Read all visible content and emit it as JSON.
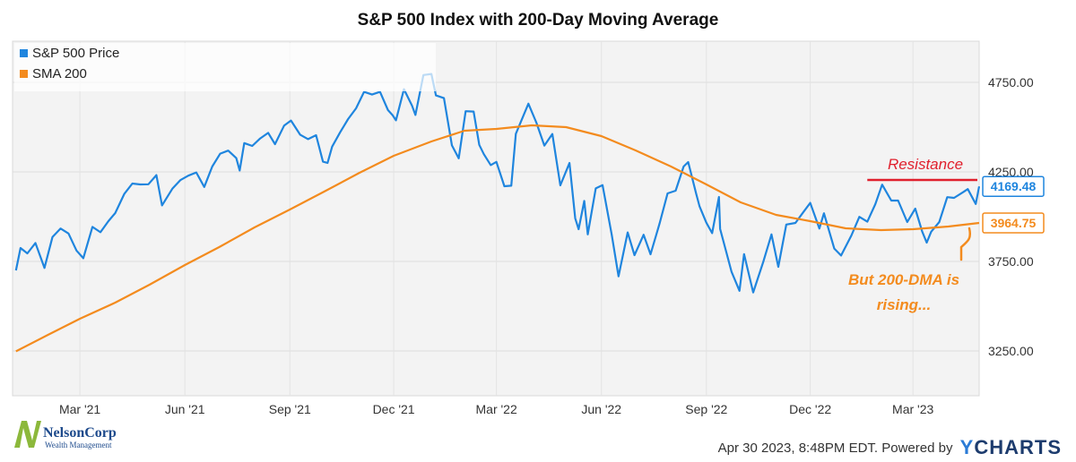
{
  "chart_data": {
    "type": "line",
    "title": "S&P 500 Index with 200-Day Moving Average",
    "x_axis_ticks": [
      "Mar '21",
      "Jun '21",
      "Sep '21",
      "Dec '21",
      "Mar '22",
      "Jun '22",
      "Sep '22",
      "Dec '22",
      "Mar '23"
    ],
    "y_axis_ticks": [
      "3250.00",
      "3750.00",
      "4250.00",
      "4750.00"
    ],
    "ylim": [
      3000,
      4980
    ],
    "xlim": [
      "2021-01-01",
      "2023-04-28"
    ],
    "legend_position": "top-left",
    "grid": true,
    "series": [
      {
        "name": "S&P 500 Price",
        "color": "#1f85de",
        "end_label": "4169.48",
        "points": [
          [
            "2021-01-04",
            3700
          ],
          [
            "2021-01-08",
            3825
          ],
          [
            "2021-01-14",
            3795
          ],
          [
            "2021-01-21",
            3853
          ],
          [
            "2021-01-29",
            3714
          ],
          [
            "2021-02-05",
            3886
          ],
          [
            "2021-02-12",
            3934
          ],
          [
            "2021-02-19",
            3906
          ],
          [
            "2021-02-26",
            3811
          ],
          [
            "2021-03-04",
            3768
          ],
          [
            "2021-03-12",
            3943
          ],
          [
            "2021-03-19",
            3913
          ],
          [
            "2021-03-26",
            3975
          ],
          [
            "2021-04-01",
            4020
          ],
          [
            "2021-04-09",
            4128
          ],
          [
            "2021-04-16",
            4185
          ],
          [
            "2021-04-23",
            4180
          ],
          [
            "2021-04-30",
            4181
          ],
          [
            "2021-05-07",
            4232
          ],
          [
            "2021-05-12",
            4063
          ],
          [
            "2021-05-21",
            4156
          ],
          [
            "2021-05-28",
            4204
          ],
          [
            "2021-06-04",
            4229
          ],
          [
            "2021-06-11",
            4247
          ],
          [
            "2021-06-18",
            4166
          ],
          [
            "2021-06-25",
            4280
          ],
          [
            "2021-07-02",
            4352
          ],
          [
            "2021-07-09",
            4369
          ],
          [
            "2021-07-16",
            4327
          ],
          [
            "2021-07-19",
            4258
          ],
          [
            "2021-07-23",
            4411
          ],
          [
            "2021-07-30",
            4395
          ],
          [
            "2021-08-06",
            4437
          ],
          [
            "2021-08-13",
            4468
          ],
          [
            "2021-08-19",
            4405
          ],
          [
            "2021-08-27",
            4509
          ],
          [
            "2021-09-02",
            4537
          ],
          [
            "2021-09-10",
            4458
          ],
          [
            "2021-09-17",
            4433
          ],
          [
            "2021-09-24",
            4455
          ],
          [
            "2021-09-30",
            4307
          ],
          [
            "2021-10-04",
            4300
          ],
          [
            "2021-10-08",
            4391
          ],
          [
            "2021-10-15",
            4471
          ],
          [
            "2021-10-22",
            4545
          ],
          [
            "2021-10-29",
            4605
          ],
          [
            "2021-11-05",
            4697
          ],
          [
            "2021-11-12",
            4682
          ],
          [
            "2021-11-19",
            4697
          ],
          [
            "2021-11-26",
            4595
          ],
          [
            "2021-11-30",
            4567
          ],
          [
            "2021-12-03",
            4538
          ],
          [
            "2021-12-10",
            4712
          ],
          [
            "2021-12-17",
            4620
          ],
          [
            "2021-12-20",
            4568
          ],
          [
            "2021-12-27",
            4791
          ],
          [
            "2022-01-03",
            4797
          ],
          [
            "2022-01-07",
            4677
          ],
          [
            "2022-01-14",
            4662
          ],
          [
            "2022-01-21",
            4398
          ],
          [
            "2022-01-27",
            4326
          ],
          [
            "2022-02-02",
            4589
          ],
          [
            "2022-02-09",
            4587
          ],
          [
            "2022-02-14",
            4401
          ],
          [
            "2022-02-18",
            4349
          ],
          [
            "2022-02-24",
            4288
          ],
          [
            "2022-03-01",
            4306
          ],
          [
            "2022-03-08",
            4170
          ],
          [
            "2022-03-14",
            4173
          ],
          [
            "2022-03-18",
            4463
          ],
          [
            "2022-03-29",
            4631
          ],
          [
            "2022-04-05",
            4525
          ],
          [
            "2022-04-12",
            4397
          ],
          [
            "2022-04-19",
            4462
          ],
          [
            "2022-04-26",
            4175
          ],
          [
            "2022-05-04",
            4300
          ],
          [
            "2022-05-09",
            3991
          ],
          [
            "2022-05-12",
            3930
          ],
          [
            "2022-05-17",
            4088
          ],
          [
            "2022-05-20",
            3901
          ],
          [
            "2022-05-27",
            4158
          ],
          [
            "2022-06-02",
            4176
          ],
          [
            "2022-06-10",
            3900
          ],
          [
            "2022-06-16",
            3667
          ],
          [
            "2022-06-24",
            3912
          ],
          [
            "2022-06-30",
            3785
          ],
          [
            "2022-07-08",
            3899
          ],
          [
            "2022-07-14",
            3790
          ],
          [
            "2022-07-22",
            3962
          ],
          [
            "2022-07-29",
            4130
          ],
          [
            "2022-08-05",
            4145
          ],
          [
            "2022-08-12",
            4280
          ],
          [
            "2022-08-16",
            4305
          ],
          [
            "2022-08-23",
            4128
          ],
          [
            "2022-08-26",
            4057
          ],
          [
            "2022-09-01",
            3966
          ],
          [
            "2022-09-06",
            3908
          ],
          [
            "2022-09-12",
            4110
          ],
          [
            "2022-09-13",
            3932
          ],
          [
            "2022-09-23",
            3693
          ],
          [
            "2022-09-30",
            3586
          ],
          [
            "2022-10-04",
            3791
          ],
          [
            "2022-10-12",
            3577
          ],
          [
            "2022-10-21",
            3752
          ],
          [
            "2022-10-28",
            3901
          ],
          [
            "2022-11-03",
            3720
          ],
          [
            "2022-11-10",
            3956
          ],
          [
            "2022-11-18",
            3965
          ],
          [
            "2022-11-25",
            4026
          ],
          [
            "2022-12-01",
            4077
          ],
          [
            "2022-12-09",
            3934
          ],
          [
            "2022-12-13",
            4019
          ],
          [
            "2022-12-22",
            3822
          ],
          [
            "2022-12-28",
            3783
          ],
          [
            "2023-01-06",
            3895
          ],
          [
            "2023-01-13",
            3999
          ],
          [
            "2023-01-20",
            3972
          ],
          [
            "2023-01-27",
            4070
          ],
          [
            "2023-02-02",
            4179
          ],
          [
            "2023-02-10",
            4090
          ],
          [
            "2023-02-16",
            4090
          ],
          [
            "2023-02-24",
            3970
          ],
          [
            "2023-03-03",
            4045
          ],
          [
            "2023-03-09",
            3918
          ],
          [
            "2023-03-13",
            3855
          ],
          [
            "2023-03-17",
            3916
          ],
          [
            "2023-03-24",
            3970
          ],
          [
            "2023-03-31",
            4109
          ],
          [
            "2023-04-06",
            4105
          ],
          [
            "2023-04-14",
            4137
          ],
          [
            "2023-04-18",
            4154
          ],
          [
            "2023-04-25",
            4071
          ],
          [
            "2023-04-28",
            4169
          ]
        ]
      },
      {
        "name": "SMA 200",
        "color": "#f38b1e",
        "end_label": "3964.75",
        "points": [
          [
            "2021-01-04",
            3248
          ],
          [
            "2021-02-01",
            3340
          ],
          [
            "2021-03-01",
            3430
          ],
          [
            "2021-04-01",
            3520
          ],
          [
            "2021-05-01",
            3620
          ],
          [
            "2021-06-01",
            3730
          ],
          [
            "2021-07-01",
            3830
          ],
          [
            "2021-08-01",
            3940
          ],
          [
            "2021-09-01",
            4040
          ],
          [
            "2021-10-01",
            4140
          ],
          [
            "2021-11-01",
            4245
          ],
          [
            "2021-12-01",
            4340
          ],
          [
            "2022-01-03",
            4420
          ],
          [
            "2022-02-01",
            4480
          ],
          [
            "2022-03-01",
            4490
          ],
          [
            "2022-04-01",
            4510
          ],
          [
            "2022-05-01",
            4500
          ],
          [
            "2022-06-01",
            4450
          ],
          [
            "2022-07-01",
            4370
          ],
          [
            "2022-08-01",
            4280
          ],
          [
            "2022-09-01",
            4180
          ],
          [
            "2022-10-01",
            4080
          ],
          [
            "2022-11-01",
            4010
          ],
          [
            "2022-12-01",
            3975
          ],
          [
            "2023-01-01",
            3935
          ],
          [
            "2023-02-01",
            3925
          ],
          [
            "2023-03-01",
            3930
          ],
          [
            "2023-04-01",
            3945
          ],
          [
            "2023-04-28",
            3965
          ]
        ]
      }
    ],
    "annotations": {
      "resistance_label": "Resistance",
      "resistance_level": 4205,
      "resistance_color": "#e0202d",
      "rising_text_line1": "But 200-DMA is",
      "rising_text_line2": "rising...",
      "rising_color": "#f38b1e"
    }
  },
  "footer": {
    "brand_name": "NelsonCorp",
    "brand_tagline": "Wealth Management",
    "timestamp": "Apr 30 2023, 8:48PM EDT.",
    "powered_by": "Powered by",
    "provider_y": "Y",
    "provider_rest": "CHARTS"
  }
}
